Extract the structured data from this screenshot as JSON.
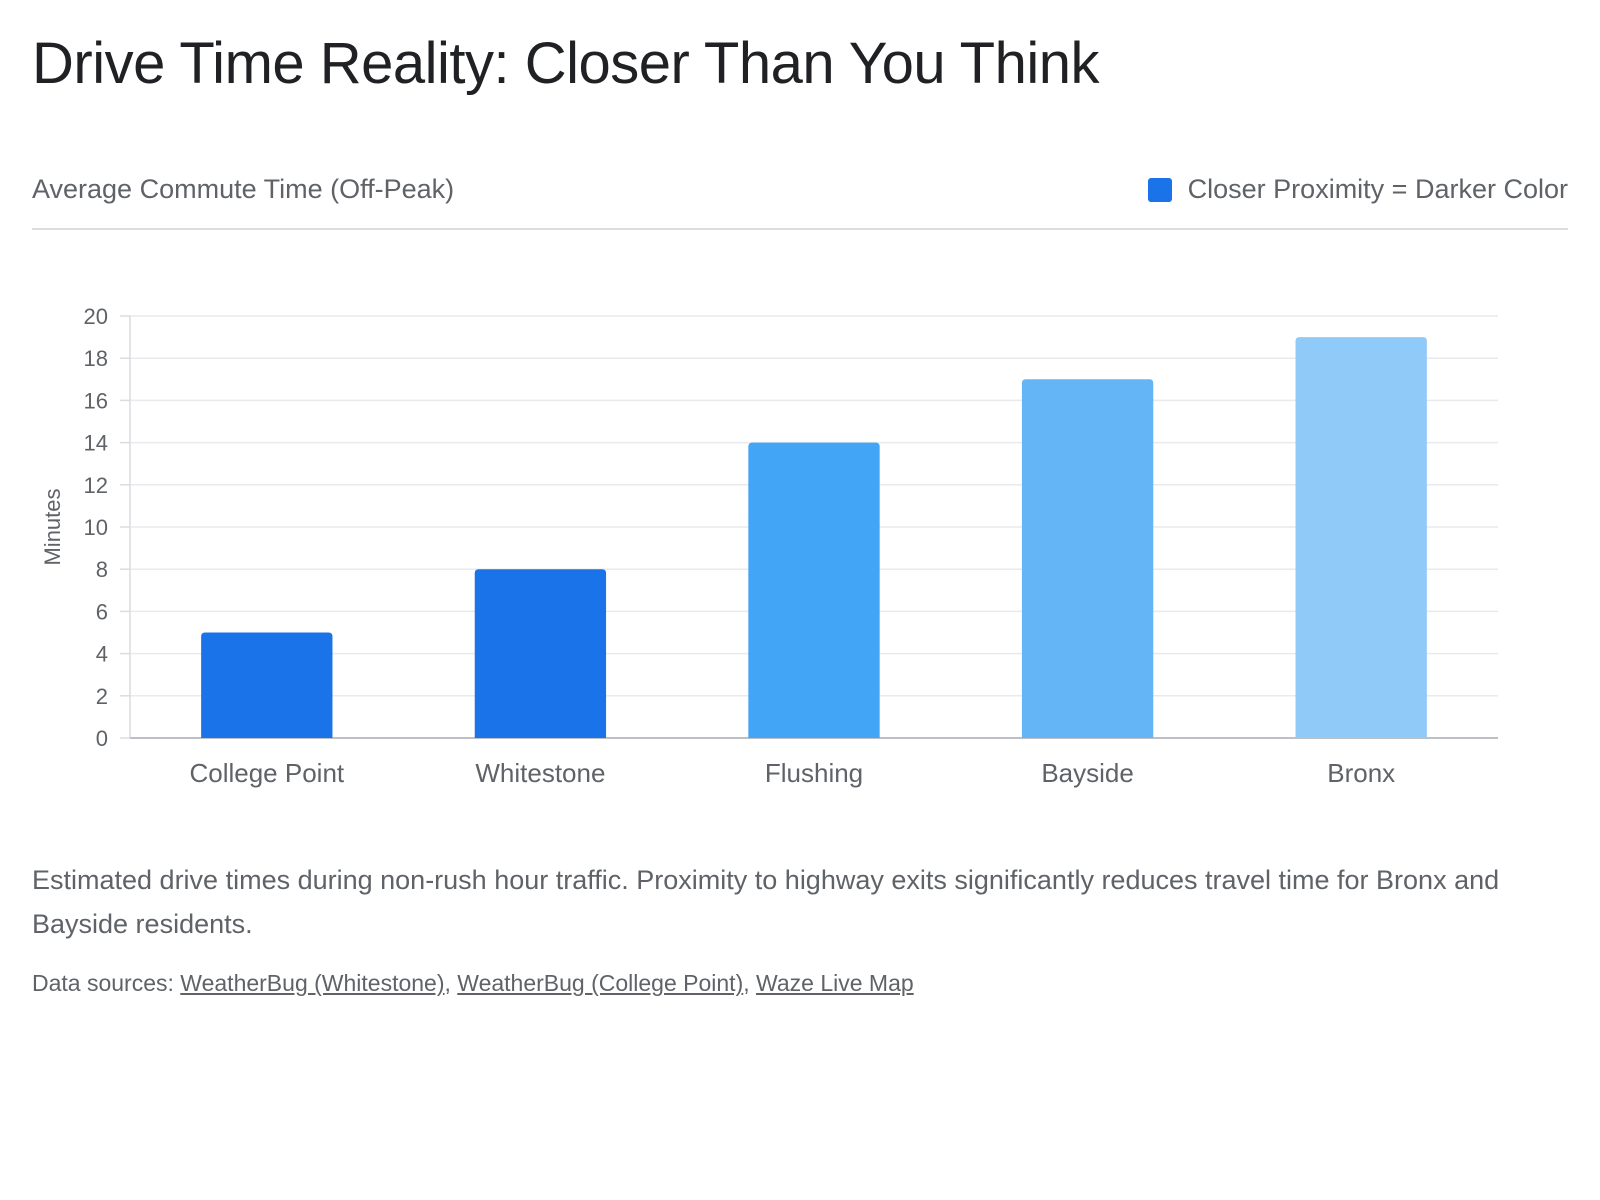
{
  "title": "Drive Time Reality: Closer Than You Think",
  "subtitle": "Average Commute Time (Off-Peak)",
  "legend": {
    "label": "Closer Proximity = Darker Color",
    "color": "#1a73e8"
  },
  "chart_data": {
    "type": "bar",
    "categories": [
      "College Point",
      "Whitestone",
      "Flushing",
      "Bayside",
      "Bronx"
    ],
    "values": [
      5,
      8,
      14,
      17,
      19
    ],
    "colors": [
      "#1a73e8",
      "#1a73e8",
      "#42a5f5",
      "#64b5f6",
      "#90caf9"
    ],
    "ylabel": "Minutes",
    "xlabel": "",
    "ylim": [
      0,
      20
    ],
    "yticks": [
      0,
      2,
      4,
      6,
      8,
      10,
      12,
      14,
      16,
      18,
      20
    ],
    "grid": true
  },
  "description": "Estimated drive times during non-rush hour traffic. Proximity to highway exits significantly reduces travel time for Bronx and Bayside residents.",
  "sources": {
    "prefix": "Data sources: ",
    "links": [
      "WeatherBug (Whitestone)",
      "WeatherBug (College Point)",
      "Waze Live Map"
    ],
    "separator": ", "
  }
}
